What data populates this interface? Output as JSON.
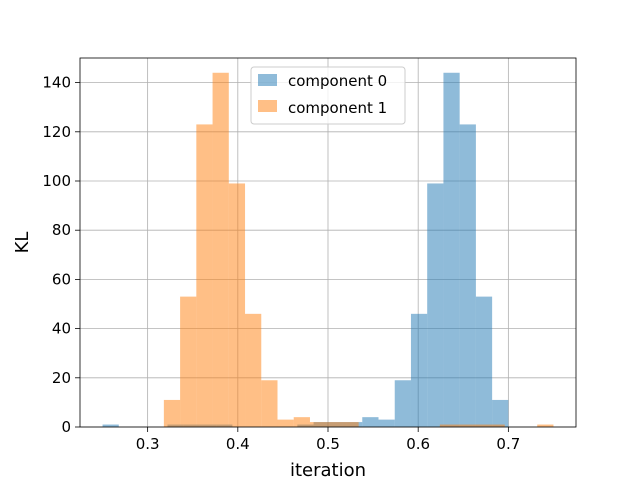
{
  "chart_data": {
    "type": "bar",
    "title": "",
    "xlabel": "iteration",
    "ylabel": "KL",
    "xlim": [
      0.225,
      0.775
    ],
    "ylim": [
      0,
      150
    ],
    "xticks": [
      0.3,
      0.4,
      0.5,
      0.6,
      0.7
    ],
    "xtick_labels": [
      "0.3",
      "0.4",
      "0.5",
      "0.6",
      "0.7"
    ],
    "yticks": [
      0,
      20,
      40,
      60,
      80,
      100,
      120,
      140
    ],
    "ytick_labels": [
      "0",
      "20",
      "40",
      "60",
      "80",
      "100",
      "120",
      "140"
    ],
    "grid": true,
    "legend_position": "upper-center",
    "bar_alpha": 0.5,
    "series": [
      {
        "name": "component 0",
        "color": "#1f77b4",
        "bins": [
          {
            "x0": 0.25,
            "x1": 0.268,
            "value": 1
          },
          {
            "x0": 0.322,
            "x1": 0.34,
            "value": 1
          },
          {
            "x0": 0.34,
            "x1": 0.358,
            "value": 1
          },
          {
            "x0": 0.358,
            "x1": 0.376,
            "value": 1
          },
          {
            "x0": 0.376,
            "x1": 0.394,
            "value": 1
          },
          {
            "x0": 0.466,
            "x1": 0.484,
            "value": 1
          },
          {
            "x0": 0.484,
            "x1": 0.502,
            "value": 2
          },
          {
            "x0": 0.502,
            "x1": 0.52,
            "value": 2
          },
          {
            "x0": 0.52,
            "x1": 0.538,
            "value": 2
          },
          {
            "x0": 0.538,
            "x1": 0.556,
            "value": 4
          },
          {
            "x0": 0.556,
            "x1": 0.574,
            "value": 3
          },
          {
            "x0": 0.574,
            "x1": 0.592,
            "value": 19
          },
          {
            "x0": 0.592,
            "x1": 0.61,
            "value": 46
          },
          {
            "x0": 0.61,
            "x1": 0.628,
            "value": 99
          },
          {
            "x0": 0.628,
            "x1": 0.646,
            "value": 144
          },
          {
            "x0": 0.646,
            "x1": 0.664,
            "value": 123
          },
          {
            "x0": 0.664,
            "x1": 0.682,
            "value": 53
          },
          {
            "x0": 0.682,
            "x1": 0.7,
            "value": 11
          }
        ]
      },
      {
        "name": "component 1",
        "color": "#ff7f0e",
        "bins": [
          {
            "x0": 0.318,
            "x1": 0.336,
            "value": 11
          },
          {
            "x0": 0.336,
            "x1": 0.354,
            "value": 53
          },
          {
            "x0": 0.354,
            "x1": 0.372,
            "value": 123
          },
          {
            "x0": 0.372,
            "x1": 0.39,
            "value": 144
          },
          {
            "x0": 0.39,
            "x1": 0.408,
            "value": 99
          },
          {
            "x0": 0.408,
            "x1": 0.426,
            "value": 46
          },
          {
            "x0": 0.426,
            "x1": 0.444,
            "value": 19
          },
          {
            "x0": 0.444,
            "x1": 0.462,
            "value": 3
          },
          {
            "x0": 0.462,
            "x1": 0.48,
            "value": 4
          },
          {
            "x0": 0.48,
            "x1": 0.498,
            "value": 2
          },
          {
            "x0": 0.498,
            "x1": 0.516,
            "value": 2
          },
          {
            "x0": 0.516,
            "x1": 0.534,
            "value": 2
          },
          {
            "x0": 0.624,
            "x1": 0.642,
            "value": 1
          },
          {
            "x0": 0.642,
            "x1": 0.66,
            "value": 1
          },
          {
            "x0": 0.66,
            "x1": 0.678,
            "value": 1
          },
          {
            "x0": 0.678,
            "x1": 0.696,
            "value": 1
          },
          {
            "x0": 0.732,
            "x1": 0.75,
            "value": 1
          }
        ]
      }
    ]
  }
}
